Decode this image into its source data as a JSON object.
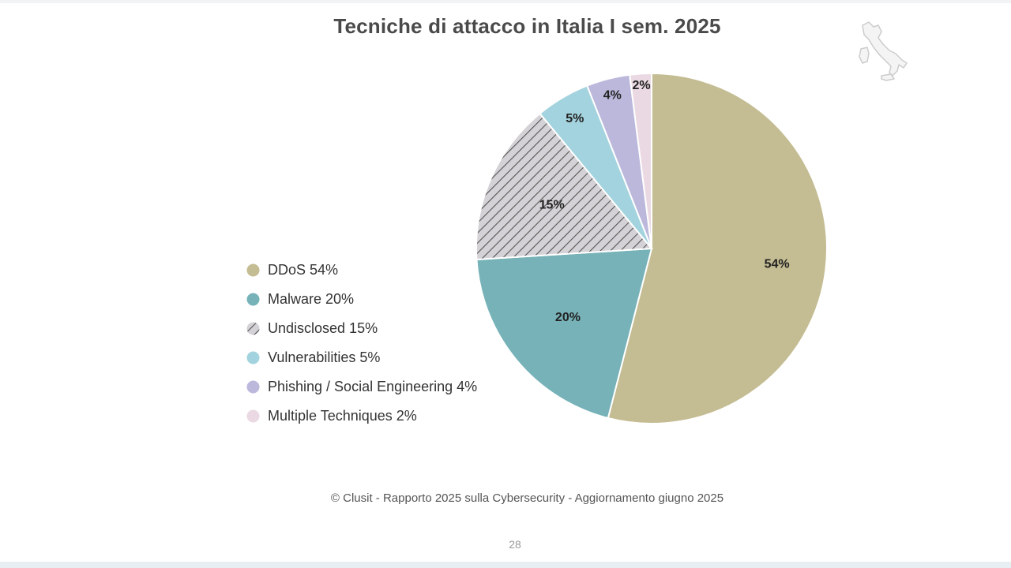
{
  "chart_data": {
    "type": "pie",
    "title": "Tecniche di attacco in Italia I sem. 2025",
    "slices": [
      {
        "label": "DDoS",
        "value": 54,
        "value_label": "54%",
        "legend": "DDoS 54%",
        "color": "#c4bc92",
        "pattern": "solid"
      },
      {
        "label": "Malware",
        "value": 20,
        "value_label": "20%",
        "legend": "Malware 20%",
        "color": "#76b2b8",
        "pattern": "solid"
      },
      {
        "label": "Undisclosed",
        "value": 15,
        "value_label": "15%",
        "legend": "Undisclosed 15%",
        "color": "#d4d2d6",
        "pattern": "hatch"
      },
      {
        "label": "Vulnerabilities",
        "value": 5,
        "value_label": "5%",
        "legend": "Vulnerabilities 5%",
        "color": "#a3d3de",
        "pattern": "solid"
      },
      {
        "label": "Phishing / Social Engineering",
        "value": 4,
        "value_label": "4%",
        "legend": "Phishing / Social Engineering 4%",
        "color": "#bbb8dc",
        "pattern": "solid"
      },
      {
        "label": "Multiple Techniques",
        "value": 2,
        "value_label": "2%",
        "legend": "Multiple Techniques 2%",
        "color": "#ead9e2",
        "pattern": "solid"
      }
    ],
    "start_angle": "12 o'clock",
    "direction": "clockwise",
    "legend_position": "left"
  },
  "footer": {
    "source": "© Clusit - Rapporto 2025 sulla Cybersecurity - Aggiornamento giugno 2025",
    "page_number": "28"
  },
  "colors": {
    "title": "#4a4a4a",
    "hatch_line": "#555555",
    "slice_border": "#ffffff",
    "map_outline": "#cccccc"
  },
  "icons": {
    "map": "italy-map-icon"
  }
}
